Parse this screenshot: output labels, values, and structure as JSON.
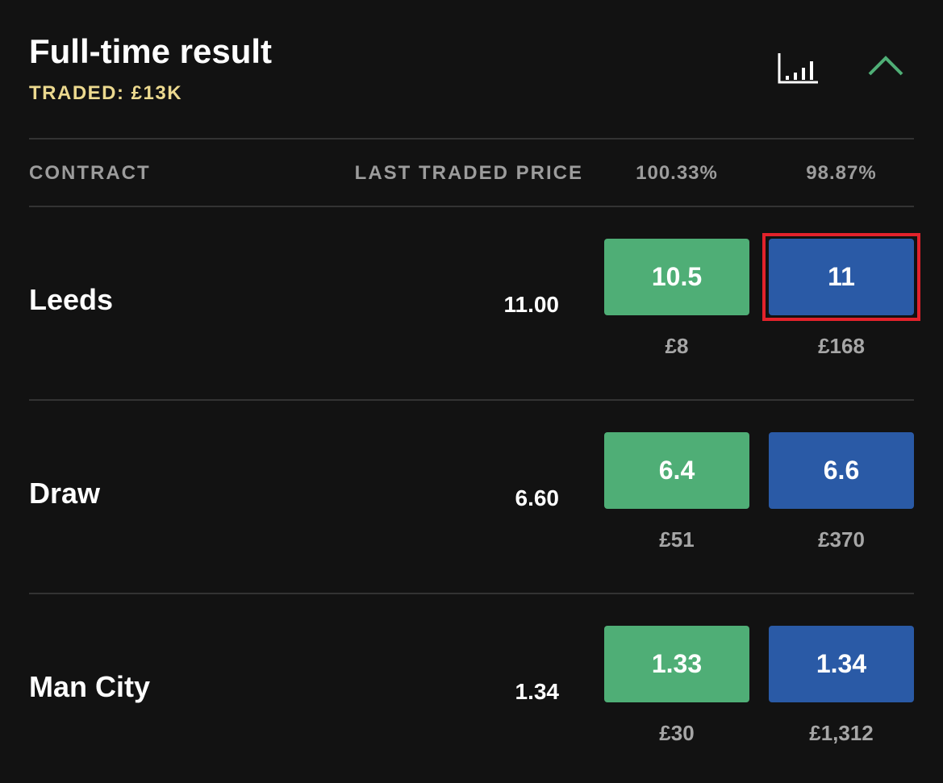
{
  "header": {
    "title": "Full-time result",
    "traded": "TRADED: £13K"
  },
  "table": {
    "columns": [
      "CONTRACT",
      "LAST TRADED PRICE",
      "100.33%",
      "98.87%"
    ],
    "rows": [
      {
        "name": "Leeds",
        "last_price": "11.00",
        "back": {
          "price": "10.5",
          "amount": "£8"
        },
        "lay": {
          "price": "11",
          "amount": "£168"
        }
      },
      {
        "name": "Draw",
        "last_price": "6.60",
        "back": {
          "price": "6.4",
          "amount": "£51"
        },
        "lay": {
          "price": "6.6",
          "amount": "£370"
        }
      },
      {
        "name": "Man City",
        "last_price": "1.34",
        "back": {
          "price": "1.33",
          "amount": "£30"
        },
        "lay": {
          "price": "1.34",
          "amount": "£1,312"
        }
      }
    ]
  }
}
